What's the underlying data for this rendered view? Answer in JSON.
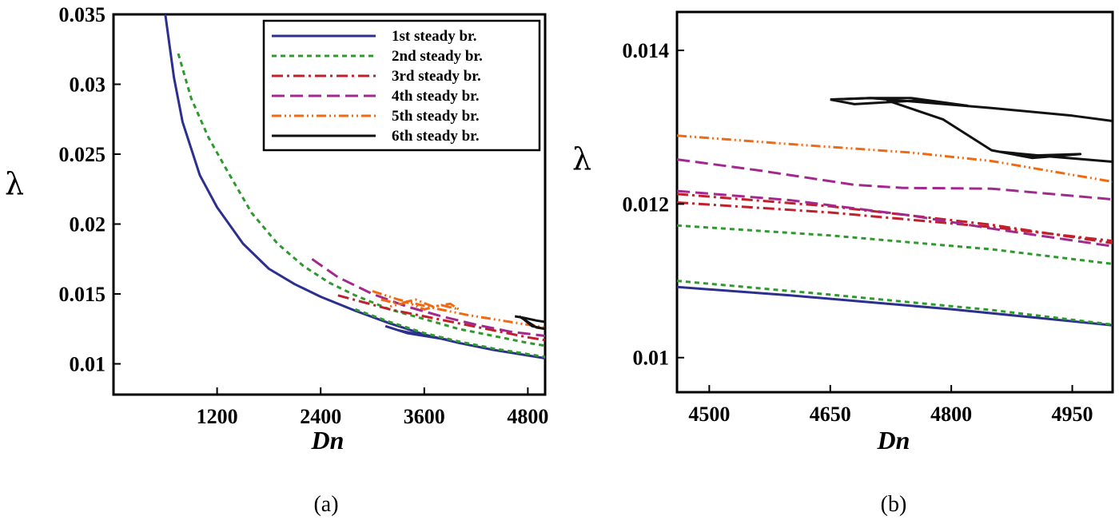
{
  "chart_data": [
    {
      "type": "line",
      "panel_label": "(a)",
      "xlabel": "Dn",
      "ylabel": "λ",
      "xlim": [
        0,
        5000
      ],
      "ylim": [
        0.0078,
        0.035
      ],
      "xticks": [
        1200,
        2400,
        3600,
        4800
      ],
      "xtick_labels": [
        "1200",
        "2400",
        "3600",
        "4800"
      ],
      "yticks": [
        0.01,
        0.015,
        0.02,
        0.025,
        0.03,
        0.035
      ],
      "ytick_labels": [
        "0.01",
        "0.015",
        "0.02",
        "0.025",
        "0.03",
        "0.035"
      ],
      "legend_position": "top-right",
      "series": [
        {
          "name": "1st steady br.",
          "color": "#2b2f8e",
          "dash": "",
          "points": [
            [
              600,
              0.035
            ],
            [
              700,
              0.0305
            ],
            [
              800,
              0.0273
            ],
            [
              1000,
              0.0235
            ],
            [
              1200,
              0.0212
            ],
            [
              1500,
              0.0186
            ],
            [
              1800,
              0.0168
            ],
            [
              2100,
              0.0157
            ],
            [
              2400,
              0.0148
            ],
            [
              2800,
              0.0138
            ],
            [
              3200,
              0.0129
            ],
            [
              3600,
              0.0121
            ],
            [
              4000,
              0.0115
            ],
            [
              4400,
              0.011
            ],
            [
              4800,
              0.0106
            ],
            [
              5000,
              0.0104
            ]
          ]
        },
        {
          "name": "1st steady br. (loop)",
          "color": "#2b2f8e",
          "dash": "",
          "points": [
            [
              3200,
              0.0126
            ],
            [
              3400,
              0.0122
            ],
            [
              3700,
              0.0119
            ],
            [
              3900,
              0.0117
            ],
            [
              3600,
              0.012
            ],
            [
              3300,
              0.0124
            ],
            [
              3150,
              0.0127
            ]
          ]
        },
        {
          "name": "2nd steady br.",
          "color": "#2e9a2e",
          "dash": "6 5",
          "points": [
            [
              750,
              0.0322
            ],
            [
              900,
              0.029
            ],
            [
              1100,
              0.0262
            ],
            [
              1300,
              0.024
            ],
            [
              1600,
              0.0208
            ],
            [
              1900,
              0.0186
            ],
            [
              2200,
              0.017
            ],
            [
              2500,
              0.0158
            ],
            [
              2800,
              0.0149
            ],
            [
              3200,
              0.0139
            ],
            [
              3600,
              0.0132
            ],
            [
              4000,
              0.0125
            ],
            [
              4400,
              0.012
            ],
            [
              4800,
              0.0115
            ],
            [
              5000,
              0.0113
            ]
          ]
        },
        {
          "name": "2nd steady br. (lower)",
          "color": "#2e9a2e",
          "dash": "6 5",
          "points": [
            [
              2800,
              0.0139
            ],
            [
              3200,
              0.013
            ],
            [
              3600,
              0.0122
            ],
            [
              4000,
              0.0116
            ],
            [
              4400,
              0.0111
            ],
            [
              4800,
              0.0107
            ],
            [
              5000,
              0.0105
            ]
          ]
        },
        {
          "name": "3rd steady br.",
          "color": "#c0202a",
          "dash": "14 5 3 5",
          "points": [
            [
              2600,
              0.0149
            ],
            [
              2900,
              0.0144
            ],
            [
              3200,
              0.0139
            ],
            [
              3600,
              0.0134
            ],
            [
              4000,
              0.0129
            ],
            [
              4400,
              0.0124
            ],
            [
              4800,
              0.0119
            ],
            [
              5000,
              0.0117
            ]
          ]
        },
        {
          "name": "4th steady br.",
          "color": "#a2288e",
          "dash": "16 7",
          "points": [
            [
              2300,
              0.0175
            ],
            [
              2600,
              0.0162
            ],
            [
              3000,
              0.015
            ],
            [
              3400,
              0.0141
            ],
            [
              3800,
              0.0134
            ],
            [
              4200,
              0.0128
            ],
            [
              4600,
              0.0123
            ],
            [
              5000,
              0.012
            ]
          ]
        },
        {
          "name": "5th steady br.",
          "color": "#f26a0f",
          "dash": "12 4 2 4 2 4",
          "points": [
            [
              3000,
              0.0152
            ],
            [
              3300,
              0.0146
            ],
            [
              3700,
              0.014
            ],
            [
              4100,
              0.0135
            ],
            [
              4500,
              0.0131
            ],
            [
              4800,
              0.0128
            ],
            [
              5000,
              0.0126
            ]
          ]
        },
        {
          "name": "5th steady br. (zigzag)",
          "color": "#f26a0f",
          "dash": "12 4 2 4 2 4",
          "points": [
            [
              3100,
              0.0146
            ],
            [
              3300,
              0.0143
            ],
            [
              3500,
              0.0146
            ],
            [
              3700,
              0.0141
            ],
            [
              3900,
              0.0143
            ],
            [
              4000,
              0.0139
            ],
            [
              3800,
              0.0142
            ],
            [
              3600,
              0.0139
            ],
            [
              3400,
              0.0144
            ],
            [
              3200,
              0.0141
            ]
          ]
        },
        {
          "name": "6th steady br.",
          "color": "#111111",
          "dash": "",
          "points": [
            [
              4650,
              0.0134
            ],
            [
              4750,
              0.0133
            ],
            [
              4900,
              0.0131
            ],
            [
              5000,
              0.013
            ]
          ]
        },
        {
          "name": "6th steady br. (loop)",
          "color": "#111111",
          "dash": "",
          "points": [
            [
              4700,
              0.0134
            ],
            [
              4800,
              0.013
            ],
            [
              4900,
              0.0126
            ],
            [
              5000,
              0.0125
            ],
            [
              4850,
              0.0127
            ],
            [
              4750,
              0.0132
            ],
            [
              4700,
              0.0134
            ]
          ]
        }
      ]
    },
    {
      "type": "line",
      "panel_label": "(b)",
      "xlabel": "Dn",
      "ylabel": "λ",
      "xlim": [
        4460,
        5000
      ],
      "ylim": [
        0.00955,
        0.0145
      ],
      "xticks": [
        4500,
        4650,
        4800,
        4950
      ],
      "xtick_labels": [
        "4500",
        "4650",
        "4800",
        "4950"
      ],
      "yticks": [
        0.01,
        0.012,
        0.014
      ],
      "ytick_labels": [
        "0.01",
        "0.012",
        "0.014"
      ],
      "series": [
        {
          "name": "1st steady br.",
          "color": "#2b2f8e",
          "dash": "",
          "points": [
            [
              4460,
              0.01092
            ],
            [
              4600,
              0.01081
            ],
            [
              4800,
              0.01063
            ],
            [
              5000,
              0.01042
            ]
          ]
        },
        {
          "name": "2nd steady br. (lower)",
          "color": "#2e9a2e",
          "dash": "6 5",
          "points": [
            [
              4460,
              0.011
            ],
            [
              4650,
              0.01082
            ],
            [
              4850,
              0.01062
            ],
            [
              5000,
              0.01043
            ]
          ]
        },
        {
          "name": "2nd steady br. (upper)",
          "color": "#2e9a2e",
          "dash": "6 5",
          "points": [
            [
              4460,
              0.01172
            ],
            [
              4650,
              0.01159
            ],
            [
              4850,
              0.01141
            ],
            [
              5000,
              0.01122
            ]
          ]
        },
        {
          "name": "3rd steady br.",
          "color": "#c0202a",
          "dash": "14 5 3 5",
          "points": [
            [
              4460,
              0.01202
            ],
            [
              4650,
              0.01189
            ],
            [
              4850,
              0.0117
            ],
            [
              5000,
              0.01152
            ]
          ]
        },
        {
          "name": "3rd steady br. (upper)",
          "color": "#c0202a",
          "dash": "14 5 3 5",
          "points": [
            [
              4460,
              0.01213
            ],
            [
              4650,
              0.01197
            ],
            [
              4850,
              0.01173
            ],
            [
              5000,
              0.01149
            ]
          ]
        },
        {
          "name": "4th steady br.",
          "color": "#a2288e",
          "dash": "16 7",
          "points": [
            [
              4460,
              0.01217
            ],
            [
              4600,
              0.01205
            ],
            [
              4750,
              0.01185
            ],
            [
              4850,
              0.01168
            ],
            [
              5000,
              0.01145
            ]
          ]
        },
        {
          "name": "4th steady br. (upper)",
          "color": "#a2288e",
          "dash": "16 7",
          "points": [
            [
              4460,
              0.01258
            ],
            [
              4560,
              0.01244
            ],
            [
              4680,
              0.01225
            ],
            [
              4740,
              0.01221
            ],
            [
              4850,
              0.0122
            ],
            [
              5000,
              0.01206
            ]
          ]
        },
        {
          "name": "5th steady br.",
          "color": "#f26a0f",
          "dash": "12 4 2 4 2 4",
          "points": [
            [
              4460,
              0.01289
            ],
            [
              4600,
              0.01278
            ],
            [
              4750,
              0.01267
            ],
            [
              4850,
              0.01256
            ],
            [
              5000,
              0.01229
            ]
          ]
        },
        {
          "name": "6th steady br.",
          "color": "#111111",
          "dash": "",
          "points": [
            [
              4650,
              0.01336
            ],
            [
              4700,
              0.01338
            ],
            [
              4850,
              0.01325
            ],
            [
              4950,
              0.01315
            ],
            [
              5000,
              0.01308
            ]
          ]
        },
        {
          "name": "6th steady br. (loop 1)",
          "color": "#111111",
          "dash": "",
          "points": [
            [
              4650,
              0.01336
            ],
            [
              4680,
              0.0133
            ],
            [
              4760,
              0.01335
            ],
            [
              4820,
              0.01328
            ],
            [
              4750,
              0.01338
            ],
            [
              4700,
              0.01338
            ],
            [
              4650,
              0.01336
            ]
          ]
        },
        {
          "name": "6th steady br. (loop 2)",
          "color": "#111111",
          "dash": "",
          "points": [
            [
              4720,
              0.01335
            ],
            [
              4790,
              0.0131
            ],
            [
              4850,
              0.0127
            ],
            [
              4900,
              0.0126
            ],
            [
              4960,
              0.01265
            ],
            [
              4900,
              0.01263
            ],
            [
              4860,
              0.01268
            ],
            [
              4920,
              0.01262
            ],
            [
              5000,
              0.01255
            ]
          ]
        }
      ]
    }
  ]
}
